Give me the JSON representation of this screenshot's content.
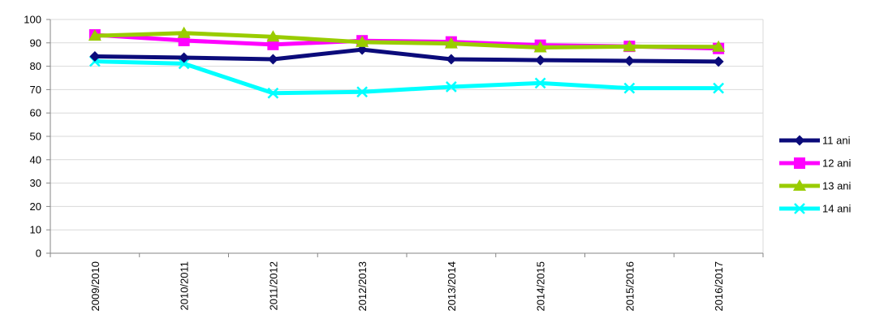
{
  "chart_data": {
    "type": "line",
    "title": "",
    "xlabel": "",
    "ylabel": "",
    "categories": [
      "2009/2010",
      "2010/2011",
      "2011/2012",
      "2012/2013",
      "2013/2014",
      "2014/2015",
      "2015/2016",
      "2016/2017"
    ],
    "ylim": [
      0,
      100
    ],
    "yticks": [
      0,
      10,
      20,
      30,
      40,
      50,
      60,
      70,
      80,
      90,
      100
    ],
    "grid": true,
    "legend_position": "right",
    "series": [
      {
        "name": "11 ani",
        "color": "#0b0b7a",
        "marker": "diamond",
        "values": [
          84.2,
          83.7,
          83.0,
          87.1,
          83.0,
          82.6,
          82.3,
          82.0
        ]
      },
      {
        "name": "12 ani",
        "color": "#ff00ff",
        "marker": "square",
        "values": [
          93.4,
          91.0,
          89.3,
          90.9,
          90.4,
          89.0,
          88.5,
          87.6
        ]
      },
      {
        "name": "13 ani",
        "color": "#99cc00",
        "marker": "triangle",
        "values": [
          93.0,
          94.2,
          92.6,
          90.3,
          89.7,
          88.0,
          88.4,
          88.3
        ]
      },
      {
        "name": "14 ani",
        "color": "#00ffff",
        "marker": "x",
        "values": [
          82.1,
          81.1,
          68.5,
          69.0,
          71.2,
          72.8,
          70.6,
          70.6
        ]
      }
    ]
  }
}
